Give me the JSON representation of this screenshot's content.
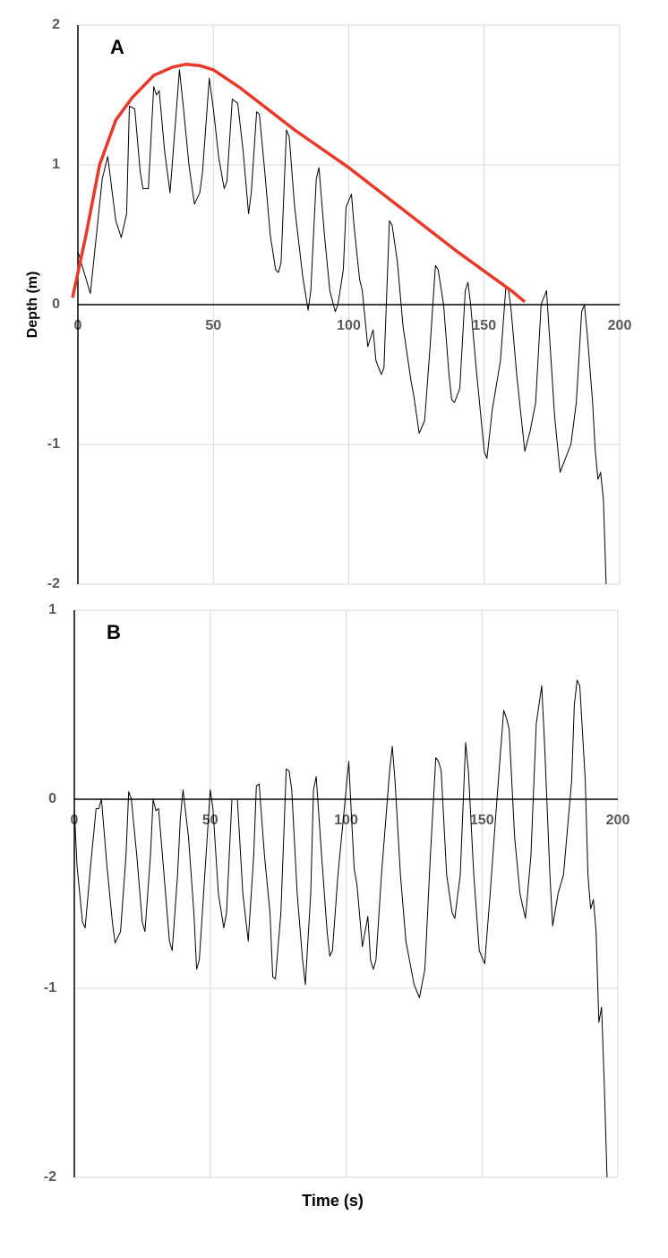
{
  "chart_data": [
    {
      "type": "line",
      "annotation": "A",
      "ylabel": "Depth (m)",
      "xlim": [
        0,
        200
      ],
      "xticks": [
        0,
        50,
        100,
        150,
        200
      ],
      "ylim": [
        -2,
        2
      ],
      "yticks": [
        -2,
        -1,
        0,
        1,
        2
      ],
      "grid": true,
      "series": [
        {
          "color": "#000000",
          "x": [
            0,
            4.6,
            9,
            11,
            14,
            16,
            18,
            19,
            21,
            23,
            24,
            26,
            28,
            29,
            30,
            32,
            34,
            36,
            37.5,
            39,
            41,
            43,
            45,
            46,
            48.5,
            50,
            52,
            54,
            55,
            57,
            59,
            61,
            63,
            64,
            66,
            67,
            69,
            71,
            73,
            74,
            75,
            77,
            78,
            80,
            83,
            85,
            86,
            88,
            89,
            91,
            93,
            95,
            96,
            98,
            99,
            101,
            102,
            104,
            105,
            107,
            109,
            110,
            112,
            113,
            115,
            116,
            118,
            120,
            123,
            124,
            126,
            128,
            130,
            132,
            133,
            135,
            137,
            138,
            139,
            141,
            143,
            144,
            145,
            147,
            150,
            151,
            153,
            156,
            158,
            159,
            160,
            162,
            165,
            167,
            169,
            171,
            173,
            174,
            176,
            178,
            180,
            182,
            184,
            186,
            187,
            188,
            190,
            191,
            192,
            193,
            194,
            195
          ],
          "values": [
            0.38,
            0.08,
            0.9,
            1.06,
            0.6,
            0.48,
            0.65,
            1.42,
            1.4,
            0.95,
            0.83,
            0.83,
            1.56,
            1.5,
            1.53,
            1.1,
            0.8,
            1.3,
            1.68,
            1.4,
            1.0,
            0.72,
            0.8,
            0.95,
            1.62,
            1.4,
            1.05,
            0.83,
            0.88,
            1.47,
            1.44,
            1.1,
            0.65,
            0.8,
            1.38,
            1.36,
            0.95,
            0.5,
            0.25,
            0.23,
            0.3,
            1.25,
            1.2,
            0.7,
            0.2,
            -0.04,
            0.1,
            0.9,
            0.98,
            0.5,
            0.1,
            -0.05,
            0.0,
            0.25,
            0.7,
            0.79,
            0.55,
            0.18,
            0.1,
            -0.3,
            -0.18,
            -0.4,
            -0.5,
            -0.45,
            0.6,
            0.57,
            0.3,
            -0.15,
            -0.55,
            -0.65,
            -0.92,
            -0.83,
            -0.3,
            0.28,
            0.25,
            0.0,
            -0.5,
            -0.68,
            -0.7,
            -0.6,
            0.1,
            0.16,
            0.0,
            -0.45,
            -1.05,
            -1.1,
            -0.75,
            -0.4,
            0.13,
            0.1,
            -0.05,
            -0.5,
            -1.05,
            -0.9,
            -0.7,
            0.0,
            0.1,
            -0.2,
            -0.8,
            -1.2,
            -1.1,
            -1.0,
            -0.7,
            -0.05,
            0.0,
            -0.2,
            -0.7,
            -1.05,
            -1.25,
            -1.2,
            -1.4,
            -2.0
          ]
        },
        {
          "color": "#e8392a",
          "x": [
            -2,
            3,
            8,
            14,
            20,
            28,
            35,
            40,
            45,
            50,
            60,
            80,
            100,
            120,
            140,
            160,
            165
          ],
          "values": [
            0.05,
            0.5,
            1.0,
            1.32,
            1.48,
            1.64,
            1.7,
            1.72,
            1.71,
            1.68,
            1.55,
            1.25,
            0.98,
            0.68,
            0.38,
            0.1,
            0.02
          ]
        }
      ]
    },
    {
      "type": "line",
      "annotation": "B",
      "xlabel": "Time (s)",
      "xlim": [
        0,
        200
      ],
      "xticks": [
        0,
        50,
        100,
        150,
        200
      ],
      "ylim": [
        -2,
        1
      ],
      "yticks": [
        -2,
        -1,
        0,
        1
      ],
      "grid": true,
      "series": [
        {
          "color": "#000000",
          "x": [
            0,
            1,
            3,
            4,
            6,
            8,
            9,
            10,
            12,
            14,
            15,
            17,
            19,
            20,
            21,
            23,
            25,
            26,
            28,
            29,
            30,
            31,
            33,
            35,
            36,
            38,
            39,
            40,
            42,
            44,
            45,
            46,
            48,
            50,
            51,
            53,
            55,
            56,
            58,
            60,
            62,
            64,
            66,
            67,
            68,
            70,
            72,
            73,
            74,
            76,
            78,
            79,
            80,
            82,
            84,
            85,
            87,
            88,
            89,
            91,
            93,
            94,
            95,
            97,
            100,
            101,
            102,
            103,
            104,
            106,
            107,
            108,
            109,
            110,
            111,
            113,
            116,
            117,
            118,
            120,
            122,
            125,
            127,
            129,
            131,
            133,
            134,
            135,
            137,
            139,
            140,
            142,
            144,
            145,
            147,
            149,
            151,
            153,
            155,
            158,
            159,
            160,
            162,
            164,
            166,
            168,
            170,
            172,
            173,
            175,
            176,
            178,
            180,
            183,
            184,
            185,
            186,
            188,
            189,
            190,
            191,
            192,
            193,
            194,
            195,
            196
          ],
          "values": [
            -0.05,
            -0.35,
            -0.65,
            -0.68,
            -0.35,
            -0.05,
            -0.05,
            0.0,
            -0.35,
            -0.65,
            -0.76,
            -0.7,
            -0.3,
            0.04,
            0.0,
            -0.3,
            -0.65,
            -0.7,
            -0.3,
            0.0,
            -0.06,
            -0.05,
            -0.4,
            -0.75,
            -0.8,
            -0.4,
            -0.1,
            0.05,
            -0.2,
            -0.6,
            -0.9,
            -0.85,
            -0.4,
            0.05,
            -0.05,
            -0.5,
            -0.68,
            -0.6,
            0.0,
            0.0,
            -0.5,
            -0.75,
            -0.3,
            0.07,
            0.08,
            -0.3,
            -0.6,
            -0.94,
            -0.95,
            -0.6,
            0.16,
            0.15,
            0.05,
            -0.5,
            -0.85,
            -0.98,
            -0.5,
            0.05,
            0.12,
            -0.3,
            -0.7,
            -0.83,
            -0.8,
            -0.4,
            0.05,
            0.2,
            -0.1,
            -0.37,
            -0.45,
            -0.78,
            -0.7,
            -0.62,
            -0.85,
            -0.9,
            -0.85,
            -0.4,
            0.15,
            0.28,
            0.1,
            -0.4,
            -0.75,
            -0.98,
            -1.05,
            -0.9,
            -0.3,
            0.22,
            0.2,
            0.15,
            -0.4,
            -0.6,
            -0.63,
            -0.4,
            0.3,
            0.15,
            -0.4,
            -0.8,
            -0.87,
            -0.5,
            -0.1,
            0.47,
            0.43,
            0.37,
            -0.2,
            -0.5,
            -0.63,
            -0.3,
            0.4,
            0.6,
            0.3,
            -0.4,
            -0.67,
            -0.5,
            -0.4,
            0.1,
            0.5,
            0.63,
            0.6,
            0.1,
            -0.4,
            -0.58,
            -0.53,
            -0.7,
            -1.18,
            -1.1,
            -1.5,
            -2.0
          ]
        }
      ]
    }
  ]
}
